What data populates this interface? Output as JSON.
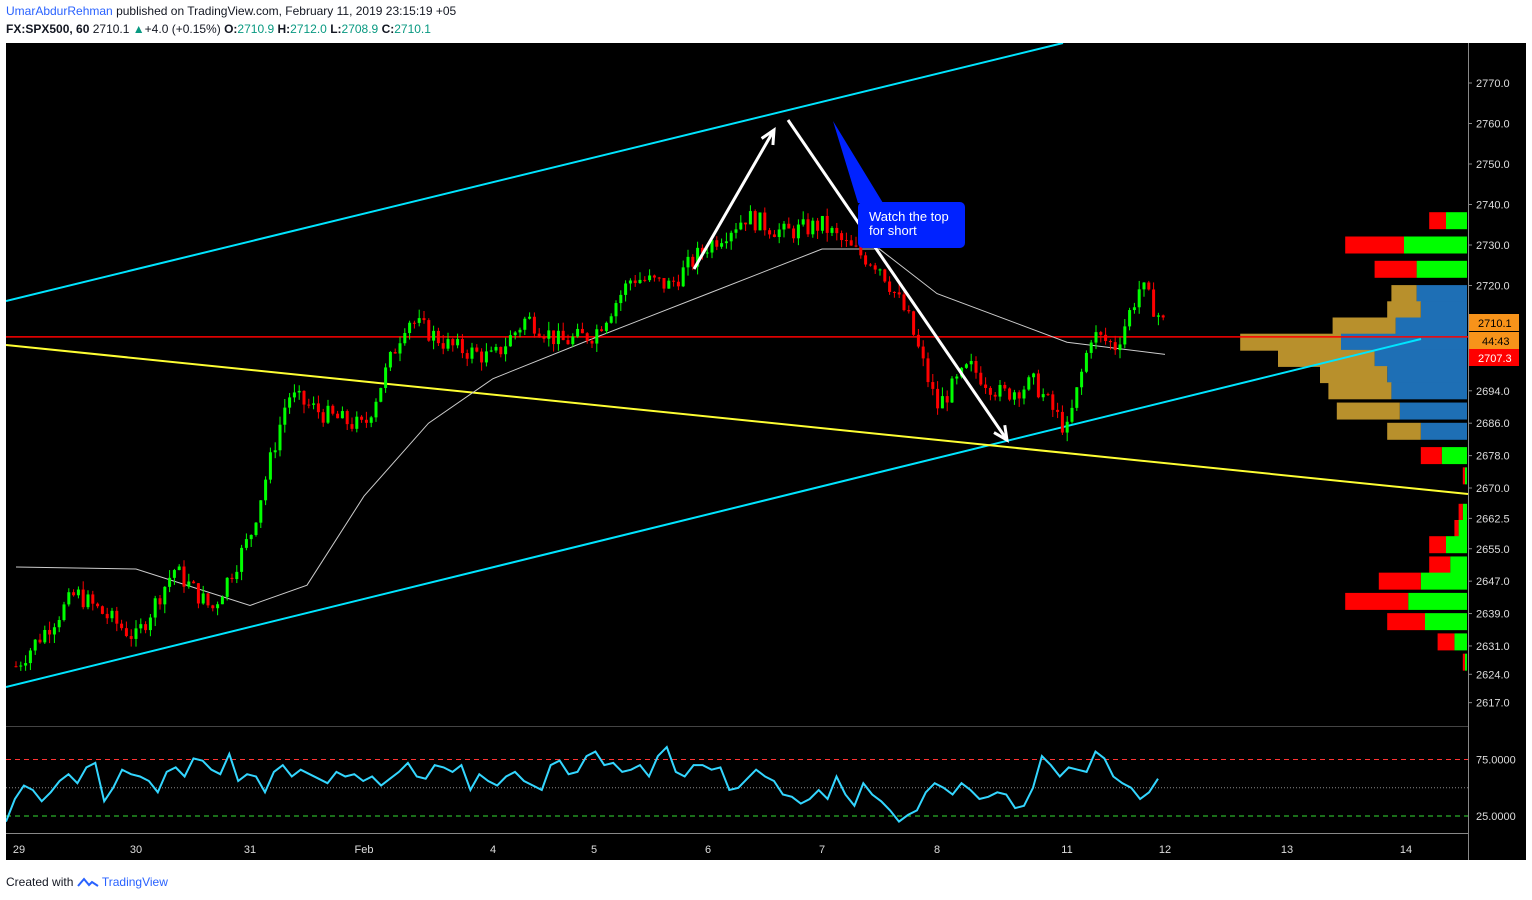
{
  "header": {
    "author": "UmarAbdurRehman",
    "published": "published on TradingView.com, February 11, 2019 23:15:19 +05",
    "symbol": "FX:SPX500, 60",
    "last": "2710.1",
    "change_arrow": "▲",
    "change": "+4.0 (+0.15%)",
    "o_label": "O:",
    "o_value": "2710.9",
    "h_label": "H:",
    "h_value": "2712.0",
    "l_label": "L:",
    "l_value": "2708.9",
    "c_label": "C:",
    "c_value": "2710.1"
  },
  "footer": {
    "created": "Created with",
    "brand": "TradingView"
  },
  "annotation": {
    "line1": "Watch the top",
    "line2": "for short"
  },
  "badges": {
    "last_price": "2710.1",
    "countdown": "44:43",
    "red_line": "2707.3"
  },
  "colors": {
    "up": "#00ff00",
    "down": "#ff0000",
    "channel": "#00e5ff",
    "trend": "#ffff33",
    "ma": "#cccccc",
    "rsi": "#33d6ff",
    "annotation_bg": "#0022ff",
    "vp_gold": "#b8902c",
    "vp_blue": "#1e6fb5",
    "badge_orange": "#f7931a"
  },
  "chart_data": [
    {
      "type": "candlestick",
      "title": "FX:SPX500, 60",
      "price_axis": [
        2770.0,
        2760.0,
        2750.0,
        2740.0,
        2730.0,
        2720.0,
        2710.1,
        2707.3,
        2694.0,
        2686.0,
        2678.0,
        2670.0,
        2662.5,
        2655.0,
        2647.0,
        2639.0,
        2631.0,
        2624.0,
        2617.0
      ],
      "price_axis_labels": [
        "2770.0",
        "2760.0",
        "2750.0",
        "2740.0",
        "2730.0",
        "2720.0",
        "2694.0",
        "2686.0",
        "2678.0",
        "2670.0",
        "2662.5",
        "2655.0",
        "2647.0",
        "2639.0",
        "2631.0",
        "2624.0",
        "2617.0"
      ],
      "x_axis_labels": [
        "29",
        "30",
        "31",
        "Feb",
        "4",
        "5",
        "6",
        "7",
        "8",
        "11",
        "12",
        "13",
        "14"
      ],
      "ylim": [
        2614,
        2776
      ],
      "horizontal_line": 2707.3,
      "close_path": [
        [
          "Jan 29",
          2626
        ],
        [
          "Jan 29",
          2644
        ],
        [
          "Jan 30",
          2633
        ],
        [
          "Jan 30",
          2650
        ],
        [
          "Jan 30",
          2640
        ],
        [
          "Jan 31",
          2658
        ],
        [
          "Jan 31",
          2693
        ],
        [
          "Jan 31",
          2688
        ],
        [
          "Feb 1",
          2685
        ],
        [
          "Feb 1",
          2712
        ],
        [
          "Feb 1",
          2705
        ],
        [
          "Feb 4",
          2702
        ],
        [
          "Feb 4",
          2712
        ],
        [
          "Feb 4",
          2706
        ],
        [
          "Feb 5",
          2708
        ],
        [
          "Feb 5",
          2722
        ],
        [
          "Feb 5",
          2720
        ],
        [
          "Feb 6",
          2730
        ],
        [
          "Feb 6",
          2737
        ],
        [
          "Feb 6",
          2733
        ],
        [
          "Feb 7",
          2735
        ],
        [
          "Feb 7",
          2729
        ],
        [
          "Feb 7",
          2725
        ],
        [
          "Feb 7",
          2712
        ],
        [
          "Feb 8",
          2690
        ],
        [
          "Feb 8",
          2700
        ],
        [
          "Feb 8",
          2693
        ],
        [
          "Feb 8",
          2696
        ],
        [
          "Feb 11",
          2684
        ],
        [
          "Feb 11",
          2708
        ],
        [
          "Feb 11",
          2705
        ],
        [
          "Feb 11",
          2720
        ],
        [
          "Feb 12",
          2710.1
        ]
      ],
      "moving_average": [
        [
          "Jan 29",
          2650.5
        ],
        [
          "Jan 30",
          2650
        ],
        [
          "Jan 31",
          2641
        ],
        [
          "Jan 31",
          2646
        ],
        [
          "Feb 1",
          2668
        ],
        [
          "Feb 1",
          2686
        ],
        [
          "Feb 4",
          2697
        ],
        [
          "Feb 5",
          2707
        ],
        [
          "Feb 6",
          2718
        ],
        [
          "Feb 7",
          2729
        ],
        [
          "Feb 7",
          2729
        ],
        [
          "Feb 8",
          2718
        ],
        [
          "Feb 11",
          2706
        ],
        [
          "Feb 12",
          2703
        ]
      ],
      "lines": [
        {
          "name": "",
          "kind": "upper channel",
          "points": [
            [
              "Jan 29",
              2713
            ],
            [
              "Feb 11",
              2776
            ]
          ]
        },
        {
          "name": "",
          "kind": "lower channel",
          "points": [
            [
              "Jan 29",
              2625
            ],
            [
              "Feb 14",
              2705
            ]
          ]
        },
        {
          "name": "",
          "kind": "yellow trend",
          "points": [
            [
              "Jan 29",
              2704
            ],
            [
              "Feb 14",
              2669
            ]
          ]
        }
      ],
      "volume_profile": [
        {
          "price": 2736,
          "sell": 4,
          "buy": 5
        },
        {
          "price": 2730,
          "sell": 14,
          "buy": 15
        },
        {
          "price": 2724,
          "sell": 10,
          "buy": 12
        },
        {
          "price": 2718,
          "sell": 6,
          "buy": 12
        },
        {
          "price": 2714,
          "sell": 8,
          "buy": 11
        },
        {
          "price": 2710,
          "sell": 15,
          "buy": 17
        },
        {
          "price": 2706,
          "sell": 24,
          "buy": 30
        },
        {
          "price": 2702,
          "sell": 23,
          "buy": 22
        },
        {
          "price": 2698,
          "sell": 16,
          "buy": 19
        },
        {
          "price": 2694,
          "sell": 15,
          "buy": 18
        },
        {
          "price": 2689,
          "sell": 15,
          "buy": 16
        },
        {
          "price": 2684,
          "sell": 8,
          "buy": 11
        },
        {
          "price": 2678,
          "sell": 5,
          "buy": 6
        },
        {
          "price": 2673,
          "sell": 0.5,
          "buy": 0.5
        },
        {
          "price": 2664,
          "sell": 1,
          "buy": 1
        },
        {
          "price": 2660,
          "sell": 1,
          "buy": 2
        },
        {
          "price": 2656,
          "sell": 4,
          "buy": 5
        },
        {
          "price": 2651,
          "sell": 5,
          "buy": 4
        },
        {
          "price": 2647,
          "sell": 10,
          "buy": 11
        },
        {
          "price": 2642,
          "sell": 15,
          "buy": 14
        },
        {
          "price": 2637,
          "sell": 9,
          "buy": 10
        },
        {
          "price": 2632,
          "sell": 4,
          "buy": 3
        },
        {
          "price": 2627,
          "sell": 0.5,
          "buy": 0.5
        }
      ]
    },
    {
      "type": "line",
      "title": "",
      "y_axis_labels": [
        "75.0000",
        "25.0000"
      ],
      "ylim": [
        10,
        90
      ],
      "levels": [
        75,
        50,
        25
      ],
      "values": [
        20,
        40,
        52,
        48,
        38,
        46,
        56,
        62,
        54,
        68,
        72,
        38,
        50,
        66,
        62,
        60,
        56,
        46,
        64,
        68,
        60,
        76,
        74,
        66,
        62,
        80,
        56,
        62,
        60,
        46,
        64,
        70,
        60,
        66,
        62,
        58,
        54,
        64,
        60,
        62,
        56,
        60,
        52,
        58,
        64,
        72,
        60,
        58,
        70,
        68,
        64,
        70,
        48,
        62,
        56,
        52,
        60,
        64,
        56,
        52,
        48,
        70,
        74,
        62,
        64,
        78,
        82,
        70,
        72,
        64,
        66,
        70,
        60,
        78,
        86,
        64,
        60,
        70,
        70,
        66,
        68,
        48,
        50,
        58,
        66,
        60,
        56,
        44,
        42,
        36,
        40,
        48,
        40,
        60,
        44,
        34,
        54,
        44,
        38,
        30,
        20,
        26,
        30,
        46,
        54,
        50,
        44,
        54,
        48,
        40,
        42,
        46,
        44,
        32,
        34,
        50,
        78,
        70,
        60,
        68,
        66,
        64,
        82,
        76,
        60,
        54,
        50,
        40,
        46,
        58
      ]
    }
  ]
}
